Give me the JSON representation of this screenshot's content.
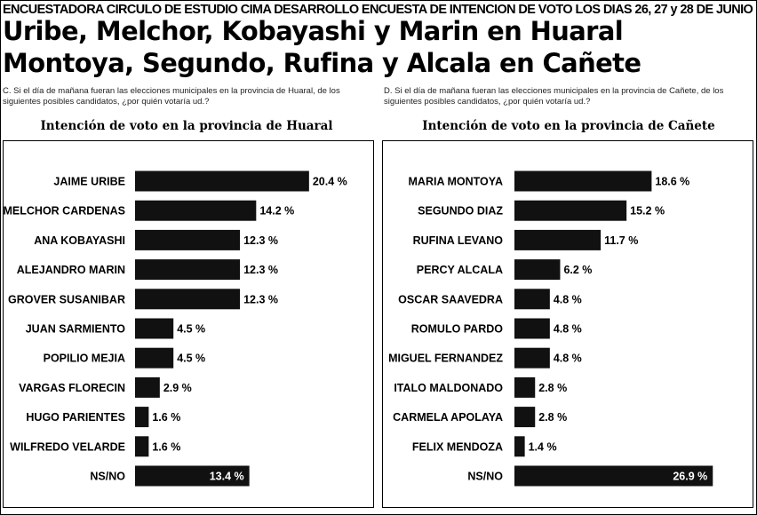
{
  "header": {
    "top_line": "ENCUESTADORA CIRCULO DE ESTUDIO CIMA DESARROLLO ENCUESTA DE INTENCION DE VOTO LOS DIAS 26, 27 y 28 DE JUNIO",
    "headline_1": "Uribe, Melchor, Kobayashi y Marin en Huaral",
    "headline_2": "Montoya, Segundo, Rufina y Alcala en Cañete"
  },
  "colors": {
    "bar": "#111111",
    "background": "#ffffff",
    "text": "#000000"
  },
  "chart_data": [
    {
      "type": "bar",
      "orientation": "horizontal",
      "question": "C. Si el día de mañana fueran las elecciones municipales en la provincia de Huaral, de los siguientes posibles candidatos, ¿por quién votaría ud.?",
      "title": "Intención de voto en la provincia de Huaral",
      "categories": [
        "JAIME URIBE",
        "MELCHOR CARDENAS",
        "ANA KOBAYASHI",
        "ALEJANDRO MARIN",
        "GROVER SUSANIBAR",
        "JUAN SARMIENTO",
        "POPILIO MEJIA",
        "VARGAS FLORECIN",
        "HUGO PARIENTES",
        "WILFREDO VELARDE",
        "NS/NO"
      ],
      "values": [
        20.4,
        14.2,
        12.3,
        12.3,
        12.3,
        4.5,
        4.5,
        2.9,
        1.6,
        1.6,
        13.4
      ],
      "value_labels": [
        "20.4 %",
        "14.2 %",
        "12.3 %",
        "12.3 %",
        "12.3 %",
        "4.5 %",
        "4.5 %",
        "2.9 %",
        "1.6 %",
        "1.6 %",
        "13.4 %"
      ],
      "label_inside": [
        false,
        false,
        false,
        false,
        false,
        false,
        false,
        false,
        false,
        false,
        true
      ]
    },
    {
      "type": "bar",
      "orientation": "horizontal",
      "question": "D. Si el día de mañana fueran las elecciones municipales en la provincia de Cañete, de los siguientes posibles candidatos, ¿por quién votaría ud.?",
      "title": "Intención de voto en la provincia de Cañete",
      "categories": [
        "MARIA MONTOYA",
        "SEGUNDO DIAZ",
        "RUFINA LEVANO",
        "PERCY ALCALA",
        "OSCAR SAAVEDRA",
        "ROMULO PARDO",
        "MIGUEL FERNANDEZ",
        "ITALO MALDONADO",
        "CARMELA APOLAYA",
        "FELIX MENDOZA",
        "NS/NO"
      ],
      "values": [
        18.6,
        15.2,
        11.7,
        6.2,
        4.8,
        4.8,
        4.8,
        2.8,
        2.8,
        1.4,
        26.9
      ],
      "value_labels": [
        "18.6 %",
        "15.2 %",
        "11.7 %",
        "6.2 %",
        "4.8 %",
        "4.8 %",
        "4.8 %",
        "2.8 %",
        "2.8 %",
        "1.4 %",
        "26.9 %"
      ],
      "label_inside": [
        false,
        false,
        false,
        false,
        false,
        false,
        false,
        false,
        false,
        false,
        true
      ]
    }
  ]
}
